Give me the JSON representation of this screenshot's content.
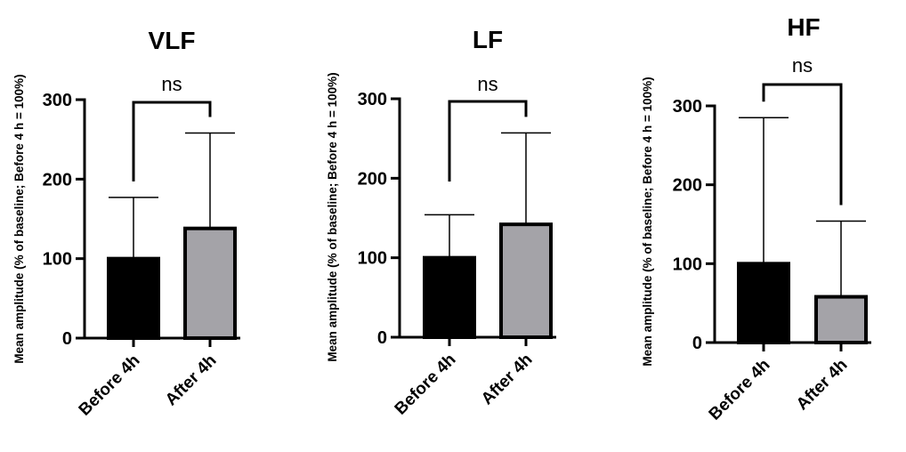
{
  "chart_data": [
    {
      "type": "bar",
      "title": "VLF",
      "ylabel": "Mean amplitude (% of baseline; Before 4 h = 100%)",
      "xlabel": "",
      "ylim": [
        0,
        300
      ],
      "yticks": [
        0,
        100,
        200,
        300
      ],
      "categories": [
        "Before 4h",
        "After 4h"
      ],
      "values": [
        100,
        138
      ],
      "error_upper": [
        177,
        258
      ],
      "bar_colors": [
        "#000000",
        "#a4a3a8"
      ],
      "significance": "ns"
    },
    {
      "type": "bar",
      "title": "LF",
      "ylabel": "Mean amplitude (% of baseline; Before 4 h = 100%)",
      "xlabel": "",
      "ylim": [
        0,
        300
      ],
      "yticks": [
        0,
        100,
        200,
        300
      ],
      "categories": [
        "Before 4h",
        "After 4h"
      ],
      "values": [
        100,
        142
      ],
      "error_upper": [
        154,
        257
      ],
      "bar_colors": [
        "#000000",
        "#a4a3a8"
      ],
      "significance": "ns"
    },
    {
      "type": "bar",
      "title": "HF",
      "ylabel": "Mean amplitude (% of baseline; Before 4 h = 100%)",
      "xlabel": "",
      "ylim": [
        0,
        300
      ],
      "yticks": [
        0,
        100,
        200,
        300
      ],
      "categories": [
        "Before 4h",
        "After 4h"
      ],
      "values": [
        100,
        58
      ],
      "error_upper": [
        285,
        154
      ],
      "bar_colors": [
        "#000000",
        "#a4a3a8"
      ],
      "significance": "ns"
    }
  ]
}
